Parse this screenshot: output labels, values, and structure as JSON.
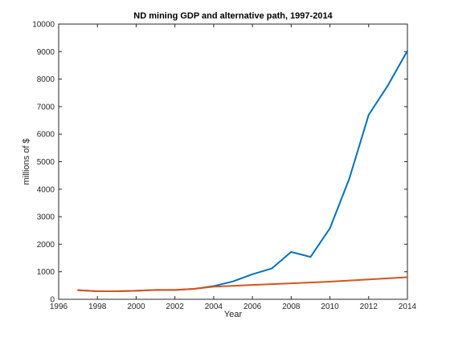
{
  "chart_data": {
    "type": "line",
    "title": "ND mining GDP and alternative path, 1997-2014",
    "xlabel": "Year",
    "ylabel": "millions of $",
    "xlim": [
      1996,
      2014
    ],
    "ylim": [
      0,
      10000
    ],
    "xticks": [
      1996,
      1998,
      2000,
      2002,
      2004,
      2006,
      2008,
      2010,
      2012,
      2014
    ],
    "yticks": [
      0,
      1000,
      2000,
      3000,
      4000,
      5000,
      6000,
      7000,
      8000,
      9000,
      10000
    ],
    "grid": false,
    "legend": "none",
    "series": [
      {
        "color": "#0072bd",
        "x": [
          1997,
          1998,
          1999,
          2000,
          2001,
          2002,
          2003,
          2004,
          2005,
          2006,
          2007,
          2008,
          2009,
          2010,
          2011,
          2012,
          2013,
          2014
        ],
        "y": [
          330,
          290,
          290,
          310,
          340,
          340,
          380,
          480,
          650,
          910,
          1120,
          1720,
          1540,
          2580,
          4380,
          6700,
          7780,
          9030
        ]
      },
      {
        "color": "#d95319",
        "x": [
          1997,
          1998,
          1999,
          2000,
          2001,
          2002,
          2003,
          2004,
          2005,
          2006,
          2007,
          2008,
          2009,
          2010,
          2011,
          2012,
          2013,
          2014
        ],
        "y": [
          330,
          290,
          290,
          310,
          340,
          340,
          380,
          460,
          490,
          520,
          550,
          580,
          610,
          640,
          680,
          720,
          760,
          800
        ]
      }
    ]
  }
}
